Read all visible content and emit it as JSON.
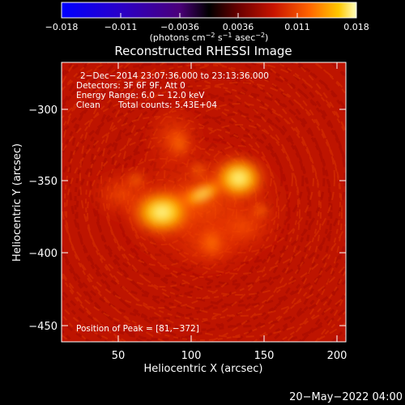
{
  "colorbar": {
    "ticks": [
      "−0.018",
      "−0.011",
      "−0.0036",
      "0.0036",
      "0.011",
      "0.018"
    ],
    "unit_label_parts": [
      "(photons cm",
      "−2",
      " s",
      "−1",
      " asec",
      "−2",
      ")"
    ],
    "colors": [
      "#0000ff",
      "#2a00c8",
      "#4b007a",
      "#000000",
      "#6a0000",
      "#c81400",
      "#ff6400",
      "#ffc800",
      "#ffffc0"
    ]
  },
  "title": "Reconstructed RHESSI Image",
  "info": {
    "line1": "2−Dec−2014 23:07:36.000 to 23:13:36.000",
    "line2": "Detectors: 3F 6F 9F, Att 0",
    "line3": "Energy Range: 6.0 − 12.0 keV",
    "line4_a": "Clean",
    "line4_b": "Total counts: 5.43E+04"
  },
  "peak": "Position of Peak = [81,−372]",
  "axes": {
    "xlabel": "Heliocentric X (arcsec)",
    "ylabel": "Heliocentric Y (arcsec)",
    "xticks": [
      "50",
      "100",
      "150",
      "200"
    ],
    "yticks": [
      "−300",
      "−350",
      "−400",
      "−450"
    ]
  },
  "timestamp": "20−May−2022 04:00",
  "image_colors": [
    "#be1400",
    "#ff5000",
    "#ffc800",
    "#ffffb0"
  ]
}
